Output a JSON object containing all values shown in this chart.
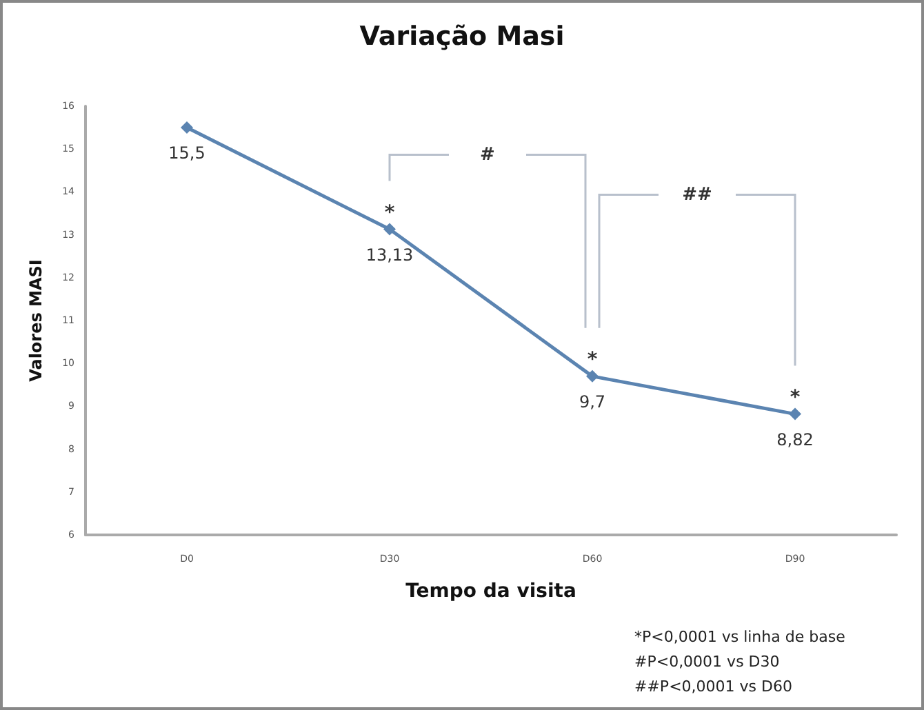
{
  "chart_data": {
    "type": "line",
    "title": "Variação Masi",
    "xlabel": "Tempo da visita",
    "ylabel": "Valores MASI",
    "categories": [
      "D0",
      "D30",
      "D60",
      "D90"
    ],
    "series": [
      {
        "color": "#5b84b1",
        "values": [
          15.5,
          13.13,
          9.7,
          8.82
        ],
        "value_labels": [
          "15,5",
          "13,13",
          "9,7",
          "8,82"
        ]
      }
    ],
    "ylim": [
      6,
      16
    ],
    "yticks": [
      6,
      7,
      8,
      9,
      10,
      11,
      12,
      13,
      14,
      15,
      16
    ],
    "grid": false,
    "marker": "diamond",
    "line_style": "solid",
    "annotations": [
      {
        "text": "*",
        "x": "D30",
        "y": 13.13
      },
      {
        "text": "*",
        "x": "D60",
        "y": 9.7
      },
      {
        "text": "*",
        "x": "D90",
        "y": 8.82
      },
      "#",
      "##",
      "*P<0,0001 vs linha de base",
      "#P<0,0001 vs D30",
      "##P<0,0001 vs D60"
    ]
  }
}
